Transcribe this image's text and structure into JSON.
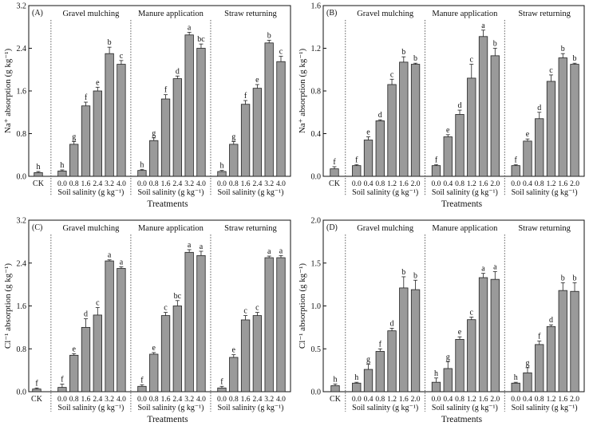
{
  "shared": {
    "xlabel": "Treatments",
    "sublabel": "Soil salinity (g kg⁻¹)",
    "ck_label": "CK",
    "groups": [
      "Gravel mulching",
      "Manure application",
      "Straw returning"
    ]
  },
  "chart_data": [
    {
      "panel": "(A)",
      "type": "bar",
      "ylabel": "Na⁺ absorption (g kg⁻¹)",
      "ylim": [
        0,
        3.2
      ],
      "yticks": [
        "0.0",
        "0.8",
        "1.6",
        "2.4",
        "3.2"
      ],
      "categories": [
        "0.0",
        "0.8",
        "1.6",
        "2.4",
        "3.2",
        "4.0"
      ],
      "ck": {
        "value": 0.07,
        "err": 0.02,
        "letter": "h"
      },
      "series": [
        {
          "name": "Gravel mulching",
          "values": [
            0.1,
            0.6,
            1.32,
            1.6,
            2.3,
            2.1
          ],
          "errors": [
            0.02,
            0.05,
            0.07,
            0.07,
            0.12,
            0.07
          ],
          "letters": [
            "h",
            "g",
            "f",
            "e",
            "b",
            "c"
          ]
        },
        {
          "name": "Manure application",
          "values": [
            0.11,
            0.67,
            1.45,
            1.83,
            2.65,
            2.4
          ],
          "errors": [
            0.02,
            0.05,
            0.08,
            0.05,
            0.05,
            0.08
          ],
          "letters": [
            "h",
            "g",
            "f",
            "d",
            "a",
            "bc"
          ]
        },
        {
          "name": "Straw returning",
          "values": [
            0.09,
            0.6,
            1.35,
            1.65,
            2.5,
            2.15
          ],
          "errors": [
            0.02,
            0.05,
            0.07,
            0.07,
            0.05,
            0.1
          ],
          "letters": [
            "h",
            "g",
            "f",
            "e",
            "b",
            "c"
          ]
        }
      ]
    },
    {
      "panel": "(B)",
      "type": "bar",
      "ylabel": "Na⁺ absorption (g kg⁻¹)",
      "ylim": [
        0,
        1.6
      ],
      "yticks": [
        "0.0",
        "0.4",
        "0.8",
        "1.2",
        "1.6"
      ],
      "categories": [
        "0.0",
        "0.4",
        "0.8",
        "1.2",
        "1.6",
        "2.0"
      ],
      "ck": {
        "value": 0.07,
        "err": 0.02,
        "letter": "f"
      },
      "series": [
        {
          "name": "Gravel mulching",
          "values": [
            0.1,
            0.34,
            0.52,
            0.86,
            1.07,
            1.05
          ],
          "errors": [
            0.01,
            0.03,
            0.01,
            0.05,
            0.05,
            0.01
          ],
          "letters": [
            "f",
            "e",
            "d",
            "c",
            "b",
            "b"
          ]
        },
        {
          "name": "Manure application",
          "values": [
            0.1,
            0.37,
            0.58,
            0.92,
            1.31,
            1.13
          ],
          "errors": [
            0.01,
            0.02,
            0.04,
            0.13,
            0.06,
            0.07
          ],
          "letters": [
            "f",
            "e",
            "d",
            "c",
            "a",
            "b"
          ]
        },
        {
          "name": "Straw returning",
          "values": [
            0.1,
            0.33,
            0.54,
            0.89,
            1.11,
            1.05
          ],
          "errors": [
            0.01,
            0.02,
            0.06,
            0.06,
            0.04,
            0.01
          ],
          "letters": [
            "f",
            "e",
            "d",
            "c",
            "b",
            "b"
          ]
        }
      ]
    },
    {
      "panel": "(C)",
      "type": "bar",
      "ylabel": "Cl⁻¹ absorption (g kg⁻¹)",
      "ylim": [
        0,
        3.2
      ],
      "yticks": [
        "0.0",
        "0.8",
        "1.6",
        "2.4",
        "3.2"
      ],
      "categories": [
        "0.0",
        "0.8",
        "1.6",
        "2.4",
        "3.2",
        "4.0"
      ],
      "ck": {
        "value": 0.05,
        "err": 0.02,
        "letter": "f"
      },
      "series": [
        {
          "name": "Gravel mulching",
          "values": [
            0.08,
            0.68,
            1.2,
            1.43,
            2.44,
            2.3
          ],
          "errors": [
            0.06,
            0.03,
            0.16,
            0.14,
            0.02,
            0.03
          ],
          "letters": [
            "f",
            "e",
            "d",
            "c",
            "a",
            "a"
          ]
        },
        {
          "name": "Manure application",
          "values": [
            0.1,
            0.7,
            1.42,
            1.6,
            2.6,
            2.54
          ],
          "errors": [
            0.03,
            0.03,
            0.06,
            0.1,
            0.05,
            0.08
          ],
          "letters": [
            "f",
            "e",
            "c",
            "bc",
            "a",
            "a"
          ]
        },
        {
          "name": "Straw returning",
          "values": [
            0.07,
            0.64,
            1.34,
            1.42,
            2.5,
            2.5
          ],
          "errors": [
            0.03,
            0.05,
            0.08,
            0.06,
            0.03,
            0.04
          ],
          "letters": [
            "f",
            "e",
            "c",
            "c",
            "a",
            "a"
          ]
        }
      ]
    },
    {
      "panel": "(D)",
      "type": "bar",
      "ylabel": "Cl⁻¹ absorption (g kg⁻¹)",
      "ylim": [
        0,
        2.0
      ],
      "yticks": [
        "0.0",
        "0.5",
        "1.0",
        "1.5",
        "2.0"
      ],
      "categories": [
        "0.0",
        "0.4",
        "0.8",
        "1.2",
        "1.6",
        "2.0"
      ],
      "ck": {
        "value": 0.07,
        "err": 0.02,
        "letter": "h"
      },
      "series": [
        {
          "name": "Gravel mulching",
          "values": [
            0.1,
            0.26,
            0.47,
            0.71,
            1.21,
            1.19
          ],
          "errors": [
            0.01,
            0.06,
            0.03,
            0.03,
            0.13,
            0.11
          ],
          "letters": [
            "h",
            "g",
            "f",
            "d",
            "b",
            "b"
          ]
        },
        {
          "name": "Manure application",
          "values": [
            0.11,
            0.27,
            0.61,
            0.84,
            1.33,
            1.31
          ],
          "errors": [
            0.05,
            0.08,
            0.03,
            0.03,
            0.05,
            0.09
          ],
          "letters": [
            "h",
            "g",
            "e",
            "c",
            "a",
            "a"
          ]
        },
        {
          "name": "Straw returning",
          "values": [
            0.1,
            0.22,
            0.55,
            0.76,
            1.18,
            1.17
          ],
          "errors": [
            0.01,
            0.06,
            0.04,
            0.02,
            0.09,
            0.1
          ],
          "letters": [
            "h",
            "g",
            "f",
            "d",
            "b",
            "b"
          ]
        }
      ]
    }
  ]
}
